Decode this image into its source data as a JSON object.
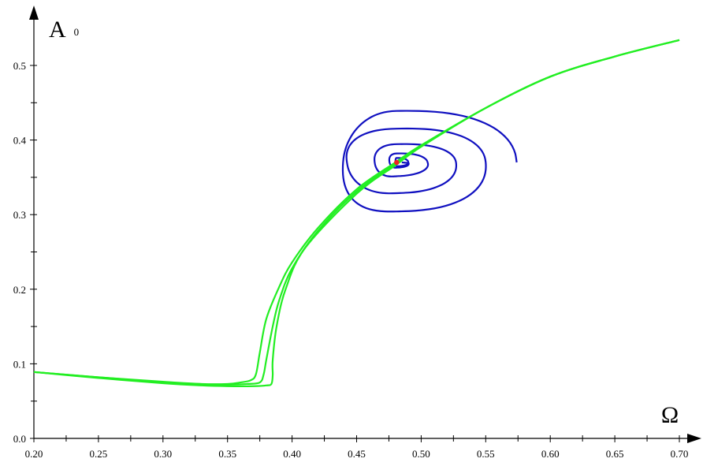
{
  "chart_data": {
    "type": "line",
    "xlabel": "Ω",
    "ylabel": {
      "main": "A",
      "sub": "0"
    },
    "xlim": [
      0.2,
      0.705
    ],
    "ylim": [
      0.0,
      0.56
    ],
    "x_ticks": [
      0.2,
      0.25,
      0.3,
      0.35,
      0.4,
      0.45,
      0.5,
      0.55,
      0.6,
      0.65,
      0.7
    ],
    "x_tick_labels": [
      "0.20",
      "0.25",
      "0.30",
      "0.35",
      "0.40",
      "0.45",
      "0.50",
      "0.55",
      "0.60",
      "0.65",
      "0.70"
    ],
    "x_minor_step": 0.025,
    "y_ticks": [
      0.0,
      0.1,
      0.2,
      0.3,
      0.4,
      0.5
    ],
    "y_tick_labels": [
      "0.0",
      "0.1",
      "0.2",
      "0.3",
      "0.4",
      "0.5"
    ],
    "y_minor_step": 0.05,
    "grid": false,
    "legend": "none",
    "colors": {
      "response_curve": "#22ee22",
      "spiral": "#1010c0",
      "point": "#ee2222",
      "axis": "#000000"
    },
    "series": [
      {
        "kind": "response-curve",
        "x": [
          0.2,
          0.25,
          0.3,
          0.33,
          0.35,
          0.36,
          0.368,
          0.372,
          0.375,
          0.38,
          0.39,
          0.4,
          0.42,
          0.45,
          0.48,
          0.5,
          0.55,
          0.6,
          0.65,
          0.7
        ],
        "y": [
          0.089,
          0.082,
          0.076,
          0.073,
          0.073,
          0.075,
          0.078,
          0.086,
          0.115,
          0.16,
          0.203,
          0.236,
          0.282,
          0.334,
          0.37,
          0.393,
          0.443,
          0.485,
          0.512,
          0.534
        ]
      },
      {
        "kind": "response-curve",
        "x": [
          0.2,
          0.25,
          0.3,
          0.33,
          0.35,
          0.365,
          0.375,
          0.378,
          0.38,
          0.385,
          0.39,
          0.4,
          0.42,
          0.45,
          0.48,
          0.5,
          0.55,
          0.6,
          0.65,
          0.7
        ],
        "y": [
          0.089,
          0.082,
          0.075,
          0.072,
          0.072,
          0.073,
          0.075,
          0.086,
          0.105,
          0.15,
          0.185,
          0.228,
          0.278,
          0.331,
          0.368,
          0.392,
          0.443,
          0.485,
          0.512,
          0.534
        ]
      },
      {
        "kind": "response-curve",
        "x": [
          0.2,
          0.25,
          0.3,
          0.33,
          0.35,
          0.37,
          0.38,
          0.384,
          0.385,
          0.385,
          0.388,
          0.395,
          0.41,
          0.45,
          0.48,
          0.5,
          0.55,
          0.6,
          0.65,
          0.7
        ],
        "y": [
          0.089,
          0.081,
          0.074,
          0.071,
          0.07,
          0.07,
          0.071,
          0.073,
          0.085,
          0.105,
          0.15,
          0.2,
          0.255,
          0.328,
          0.366,
          0.391,
          0.443,
          0.485,
          0.512,
          0.534
        ]
      },
      {
        "kind": "spiral",
        "center": [
          0.481,
          0.37
        ],
        "rings": [
          {
            "x_left": 0.451,
            "x_right": 0.574,
            "y_top": 0.445,
            "y_bottom": 0.287
          },
          {
            "x_left": 0.428,
            "x_right": 0.55,
            "y_top": 0.421,
            "y_bottom": 0.31
          },
          {
            "x_left": 0.457,
            "x_right": 0.527,
            "y_top": 0.398,
            "y_bottom": 0.335
          },
          {
            "x_left": 0.471,
            "x_right": 0.505,
            "y_top": 0.384,
            "y_bottom": 0.357
          },
          {
            "x_left": 0.48,
            "x_right": 0.49,
            "y_top": 0.376,
            "y_bottom": 0.365
          }
        ]
      }
    ],
    "point": {
      "x": 0.481,
      "y": 0.37
    }
  }
}
